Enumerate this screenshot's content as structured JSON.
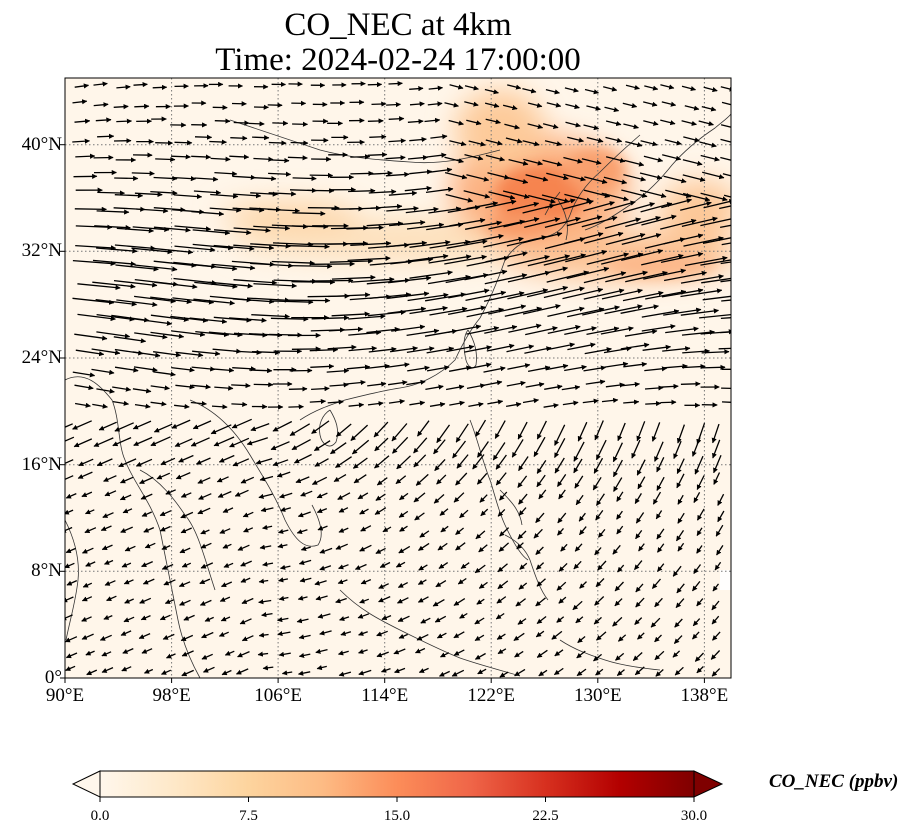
{
  "title": {
    "line1": "CO_NEC at 4km",
    "line2": "Time: 2024-02-24 17:00:00"
  },
  "map": {
    "projection": "PlateCarree",
    "lon_range": [
      90,
      140
    ],
    "lat_range": [
      0,
      45
    ],
    "gridlines": "dotted",
    "x_ticks": [
      "90°E",
      "98°E",
      "106°E",
      "114°E",
      "122°E",
      "130°E",
      "138°E"
    ],
    "y_ticks": [
      "0°",
      "8°N",
      "16°N",
      "24°N",
      "32°N",
      "40°N"
    ],
    "layers": [
      "CO concentration field",
      "wind vectors",
      "coastlines",
      "country borders"
    ]
  },
  "colorbar": {
    "label": "CO_NEC (ppbv)",
    "colormap": "OrRd",
    "range": [
      0.0,
      30.0
    ],
    "extend": "both",
    "ticks": [
      "0.0",
      "7.5",
      "15.0",
      "22.5",
      "30.0"
    ],
    "colors": [
      "#fff7ec",
      "#fee8c8",
      "#fdd49e",
      "#fdbb84",
      "#fc8d59",
      "#ef6548",
      "#d7301f",
      "#b30000",
      "#7f0000"
    ]
  }
}
